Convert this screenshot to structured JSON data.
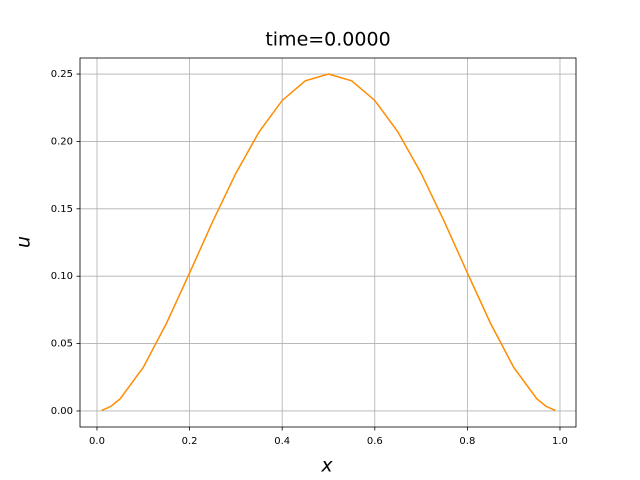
{
  "chart_data": {
    "type": "line",
    "title": "time=0.0000",
    "xlabel": "x",
    "ylabel": "u",
    "x": [
      0.01,
      0.03,
      0.05,
      0.1,
      0.15,
      0.2,
      0.25,
      0.3,
      0.35,
      0.4,
      0.45,
      0.5,
      0.55,
      0.6,
      0.65,
      0.7,
      0.75,
      0.8,
      0.85,
      0.9,
      0.95,
      0.97,
      0.99
    ],
    "series": [
      {
        "color": "#ff8c00",
        "values": [
          0.0004,
          0.0034,
          0.009,
          0.0324,
          0.065,
          0.1024,
          0.1406,
          0.1764,
          0.207,
          0.2304,
          0.245,
          0.25,
          0.245,
          0.2304,
          0.207,
          0.1764,
          0.1406,
          0.1024,
          0.065,
          0.0324,
          0.009,
          0.0034,
          0.0004
        ]
      }
    ],
    "xlim": [
      -0.0367,
      1.0346
    ],
    "ylim": [
      -0.0119,
      0.2619
    ],
    "xticks": [
      {
        "value": 0,
        "label": "0.0"
      },
      0.2,
      0.4,
      0.6,
      0.8,
      {
        "value": 1,
        "label": "1.0"
      }
    ],
    "yticks": [
      {
        "value": 0,
        "label": "0.00"
      },
      {
        "value": 0.05,
        "label": "0.05"
      },
      {
        "value": 0.1,
        "label": "0.10"
      },
      {
        "value": 0.15,
        "label": "0.15"
      },
      {
        "value": 0.2,
        "label": "0.20"
      },
      {
        "value": 0.25,
        "label": "0.25"
      }
    ],
    "grid": true
  }
}
